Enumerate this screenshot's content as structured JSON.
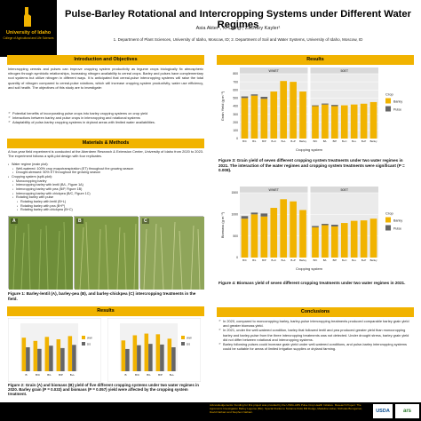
{
  "logo": {
    "name": "University of Idaho",
    "sub": "College of Agricultural and Life Sciences"
  },
  "header": {
    "title": "Pulse-Barley Rotational and Intercropping Systems under Different Water Regimes",
    "authors": "Asia Akter¹, Xi Liang², Zachary Kayler¹",
    "affiliation": "1.  Department of Plant Sciences, University of Idaho, Moscow, ID; 2. Department of Soil and Water Systems, University of Idaho, Moscow, ID"
  },
  "intro": {
    "heading": "Introduction and Objectives",
    "text": "Intercropping cereals and pulses can improve cropping system productivity as legume crops biologically fix atmospheric nitrogen through symbiotic relationships, increasing nitrogen availability to cereal crops. Barley and pulses have complementary root systems but utilize nitrogen in different ways. It is anticipated that cereal-pulse intercropping systems will raise the total quantity of nitrogen compared to cereal-pulse rotations, which will increase cropping system productivity, water use efficiency, and soil health. The objectives of this study are to investigate:",
    "bullets": [
      "Potential benefits of incorporating pulse crops into barley cropping systems on crop yield",
      "Interactions between barley and pulse crops in intercropping and rotational systems",
      "Adaptability of pulse-barley cropping systems in dryland areas with limited water availabilities."
    ]
  },
  "methods": {
    "heading": "Materials & Methods",
    "text": "A four-year field experiment is conducted at the Aberdeen Research & Extension Center, University of Idaho from 2020 to 2023. The experiment follows a split-plot design with four replicates.",
    "items": [
      {
        "level": 1,
        "text": "Water regime (main plot):"
      },
      {
        "level": 2,
        "text": "Well-watered: 100% crop evapotranspiration (ET) throughout the growing season"
      },
      {
        "level": 2,
        "text": "Drought-stressed: 50% ET throughout the growing season"
      },
      {
        "level": 1,
        "text": "Cropping system (split-plot):"
      },
      {
        "level": 2,
        "text": "Monocropping barley"
      },
      {
        "level": 2,
        "text": "Intercropping barley with lentil  (B/L, Figure 1A)"
      },
      {
        "level": 2,
        "text": "Intercropping barley with pea  (B/P, Figure 1B)"
      },
      {
        "level": 2,
        "text": "Intercropping barley with chickpea  (B/C, Figure 1C)"
      },
      {
        "level": 2,
        "text": "Rotating barley with pulse"
      },
      {
        "level": 3,
        "text": "Rotating barley with lentil (B+L)"
      },
      {
        "level": 3,
        "text": "Rotating barley with pea (B+P)"
      },
      {
        "level": 3,
        "text": "Rotating barley with chickpea (B+C)"
      }
    ]
  },
  "photos": {
    "labels": [
      "A",
      "B",
      "C"
    ],
    "colors": [
      "#6f8e3a",
      "#7f9a45",
      "#8fa55a"
    ],
    "caption": "Figure 1: Barley-lentil (A), barley-pea (B), and barley-chickpea (C) intercropping treatments in the field."
  },
  "results_left": {
    "heading": "Results",
    "caption": "Figure 2:  Grain (A) and biomass (B) yield of five different cropping systems under two water regimes in 2020. Barley grain (P = 0.033) and biomass (P = 0.057) yield were affected by the cropping system treatment."
  },
  "results_right": {
    "heading": "Results",
    "fig3_caption": "Figure 3: Grain yield of seven different cropping system treatments under two water regimes in 2021. The interaction of the water regimes and cropping system treatments were significant (P = 0.008).",
    "fig4_caption": "Figure 4: Biomass yield of seven different cropping treatments under two water regimes in 2021."
  },
  "conclusions": {
    "heading": "Conclusions",
    "items": [
      "In 2020, compared to monocropping barley, barley-pulse intercropping treatments produced comparable barley grain yield and greater biomass yield.",
      "In 2021, under the well-watered condition, barley that followed lentil and pea produced greater yield than monocropping barley and barley-pulse from the three intercropping treatments was not detected. Under drought stress, barley grain yield did not differ between rotational and intercropping systems.",
      "Barley following pulses could increase grain yield under well-watered conditions, and pulse-barley intercropping systems could be suitable for areas of limited irrigation supplies or dryland farming."
    ]
  },
  "footer": {
    "text": "Acknowledgements: Funding for this project was provided by the USDA-ARS Pulse Crop Health Initiative. Research Project: The Agronomic Investigation Barley Legume (BLI). Special thanks to Suzanne Kidd, Bill Dodge, Madeline Huber, Nicholas Bumgarner, David Nathani and Stephen Nathani.",
    "usda": "USDA",
    "ars": "ars"
  },
  "colors": {
    "gold": "#f1b300",
    "pulse": "#666666",
    "black": "#000000"
  },
  "chart_data": [
    {
      "type": "bar",
      "title": "Figure 3",
      "panels": [
        "WWET",
        "50ET"
      ],
      "categories": [
        "B/C",
        "B/L",
        "B/P",
        "B+C",
        "B+L",
        "B+P",
        "Barley"
      ],
      "ylabel": "Grain Yield (g m⁻²)",
      "xlabel": "Cropping system",
      "ylim": [
        0,
        800
      ],
      "yticks": [
        0,
        100,
        200,
        300,
        400,
        500,
        600,
        700,
        800
      ],
      "legend_title": "Crop",
      "series": [
        {
          "name": "Barley",
          "values": [
            [
              500,
              530,
              490,
              580,
              710,
              700,
              580
            ],
            [
              400,
              420,
              400,
              410,
              420,
              430,
              450
            ]
          ]
        },
        {
          "name": "Pulse",
          "values": [
            [
              20,
              15,
              25,
              0,
              0,
              0,
              0
            ],
            [
              10,
              12,
              15,
              0,
              0,
              0,
              0
            ]
          ]
        }
      ],
      "legend_position": "right"
    },
    {
      "type": "bar",
      "title": "Figure 4",
      "panels": [
        "WWET",
        "50ET"
      ],
      "categories": [
        "B/C",
        "B/L",
        "B/P",
        "B+C",
        "B+L",
        "B+P",
        "Barley"
      ],
      "ylabel": "Biomass (g m⁻²)",
      "xlabel": "Cropping system",
      "ylim": [
        0,
        1500
      ],
      "yticks": [
        0,
        500,
        1000,
        1500
      ],
      "legend_title": "Crop",
      "series": [
        {
          "name": "Barley",
          "values": [
            [
              900,
              1000,
              950,
              1150,
              1350,
              1300,
              1100
            ],
            [
              700,
              750,
              720,
              800,
              850,
              860,
              900
            ]
          ]
        },
        {
          "name": "Pulse",
          "values": [
            [
              60,
              40,
              70,
              0,
              0,
              0,
              0
            ],
            [
              30,
              30,
              40,
              0,
              0,
              0,
              0
            ]
          ]
        }
      ],
      "legend_position": "right"
    },
    {
      "type": "bar",
      "title": "Figure 2A",
      "categories": [
        "B",
        "B/C",
        "B/L",
        "B/P",
        "B+L"
      ],
      "series": [
        {
          "name": "WW",
          "values": [
            420,
            380,
            430,
            400,
            440
          ]
        },
        {
          "name": "DS",
          "values": [
            300,
            280,
            320,
            290,
            330
          ]
        }
      ],
      "ylim": [
        0,
        600
      ]
    },
    {
      "type": "bar",
      "title": "Figure 2B",
      "categories": [
        "B",
        "B/C",
        "B/L",
        "B/P",
        "B+L"
      ],
      "series": [
        {
          "name": "WW",
          "values": [
            900,
            1050,
            1100,
            1080,
            950
          ]
        },
        {
          "name": "DS",
          "values": [
            650,
            760,
            800,
            780,
            700
          ]
        }
      ],
      "ylim": [
        0,
        1400
      ]
    }
  ]
}
